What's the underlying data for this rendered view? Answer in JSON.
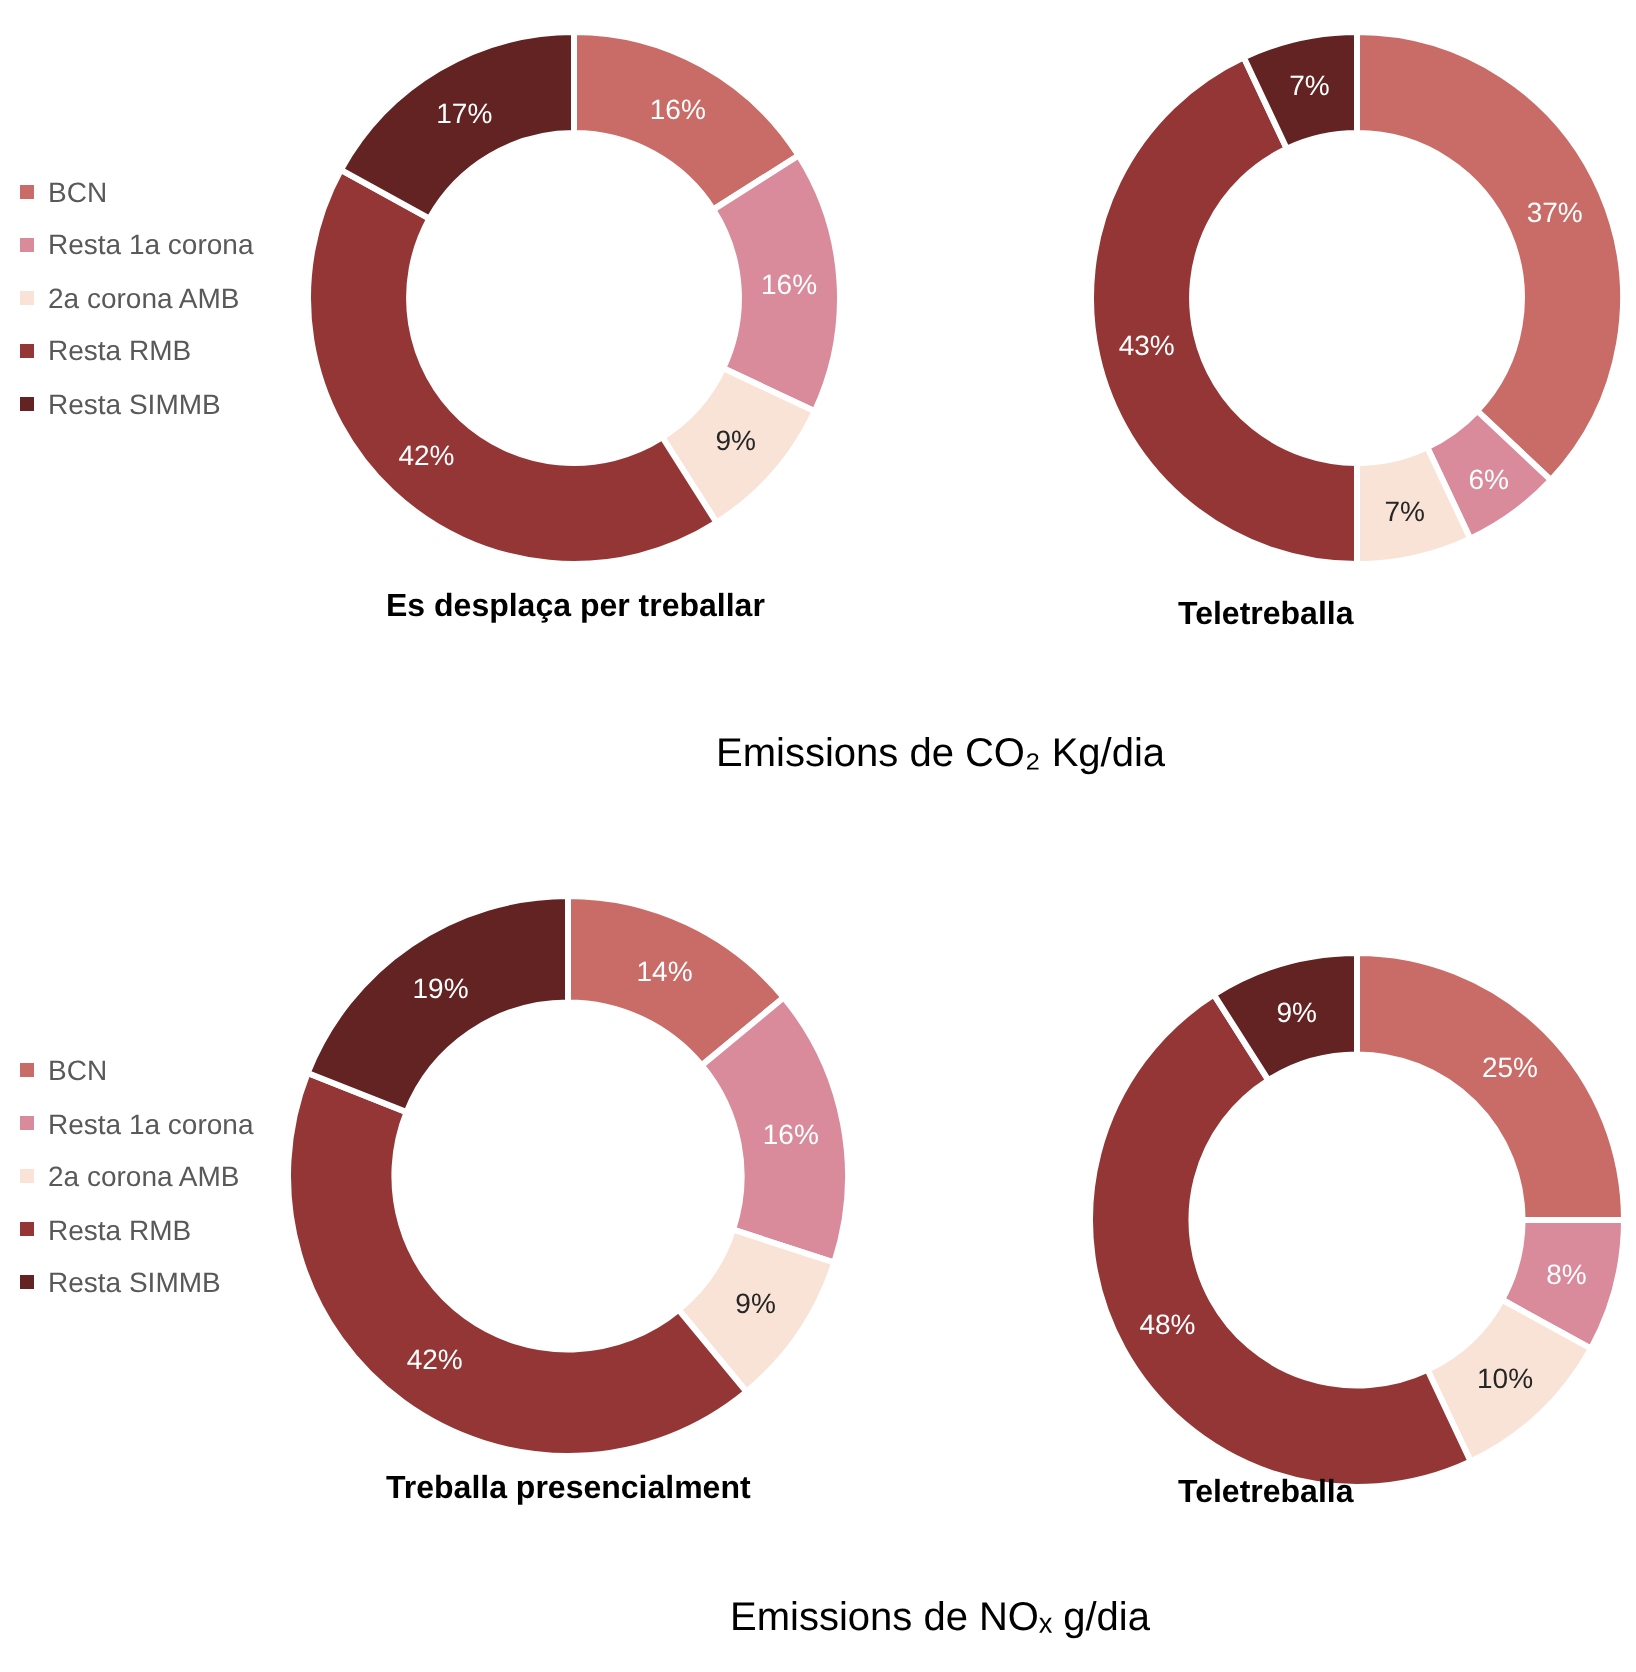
{
  "chart_data": [
    {
      "type": "donut",
      "title": "Es desplaça per treballar",
      "categories": [
        "BCN",
        "Resta 1a corona",
        "2a corona AMB",
        "Resta RMB",
        "Resta SIMMB"
      ],
      "values": [
        16,
        16,
        9,
        42,
        17
      ],
      "value_labels": [
        "16%",
        "16%",
        "9%",
        "42%",
        "17%"
      ],
      "colors": [
        "#c96b67",
        "#d98b9b",
        "#f9e3d6",
        "#943636",
        "#632323"
      ],
      "legend": "left",
      "annotations": [
        "Emissions de CO₂ Kg/dia"
      ]
    },
    {
      "type": "donut",
      "title": "Teletreballa",
      "categories": [
        null,
        null,
        null,
        null,
        null
      ],
      "values": [
        37,
        6,
        7,
        43,
        7
      ],
      "value_labels": [
        "37%",
        "6%",
        "7%",
        "43%",
        "7%"
      ],
      "colors": [
        "#c96b67",
        "#d98b9b",
        "#f9e3d6",
        "#943636",
        "#632323"
      ],
      "legend": false
    },
    {
      "type": "donut",
      "title": "Treballa presencialment",
      "categories": [
        "BCN",
        "Resta 1a corona",
        "2a corona AMB",
        "Resta RMB",
        "Resta SIMMB"
      ],
      "values": [
        14,
        16,
        9,
        42,
        19
      ],
      "value_labels": [
        "14%",
        "16%",
        "9%",
        "42%",
        "19%"
      ],
      "colors": [
        "#c96b67",
        "#d98b9b",
        "#f9e3d6",
        "#943636",
        "#632323"
      ],
      "legend": "left",
      "annotations": [
        "Emissions de NOₓ g/dia"
      ]
    },
    {
      "type": "donut",
      "title": "Teletreballa",
      "categories": [
        null,
        null,
        null,
        null,
        null
      ],
      "values": [
        25,
        8,
        10,
        48,
        9
      ],
      "value_labels": [
        "25%",
        "8%",
        "10%",
        "48%",
        "9%"
      ],
      "colors": [
        "#c96b67",
        "#d98b9b",
        "#f9e3d6",
        "#943636",
        "#632323"
      ],
      "legend": false
    }
  ]
}
